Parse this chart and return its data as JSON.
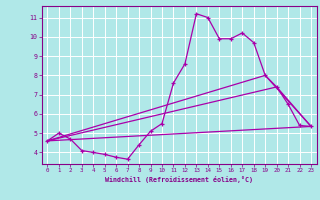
{
  "title": "",
  "xlabel": "Windchill (Refroidissement éolien,°C)",
  "bg_color": "#b0e8e8",
  "grid_color": "#ffffff",
  "line_color": "#aa00aa",
  "xlim": [
    -0.5,
    23.5
  ],
  "ylim": [
    3.4,
    11.6
  ],
  "yticks": [
    4,
    5,
    6,
    7,
    8,
    9,
    10,
    11
  ],
  "xticks": [
    0,
    1,
    2,
    3,
    4,
    5,
    6,
    7,
    8,
    9,
    10,
    11,
    12,
    13,
    14,
    15,
    16,
    17,
    18,
    19,
    20,
    21,
    22,
    23
  ],
  "line1_x": [
    0,
    1,
    2,
    3,
    4,
    5,
    6,
    7,
    8,
    9,
    10,
    11,
    12,
    13,
    14,
    15,
    16,
    17,
    18,
    19,
    20,
    21,
    22,
    23
  ],
  "line1_y": [
    4.6,
    5.0,
    4.7,
    4.1,
    4.0,
    3.9,
    3.75,
    3.65,
    4.4,
    5.1,
    5.5,
    7.6,
    8.6,
    11.2,
    11.0,
    9.9,
    9.9,
    10.2,
    9.7,
    8.0,
    7.4,
    6.5,
    5.4,
    5.35
  ],
  "line2_x": [
    0,
    23
  ],
  "line2_y": [
    4.6,
    5.35
  ],
  "line3_x": [
    0,
    19,
    23
  ],
  "line3_y": [
    4.6,
    8.0,
    5.35
  ],
  "line4_x": [
    0,
    20,
    23
  ],
  "line4_y": [
    4.6,
    7.4,
    5.35
  ]
}
